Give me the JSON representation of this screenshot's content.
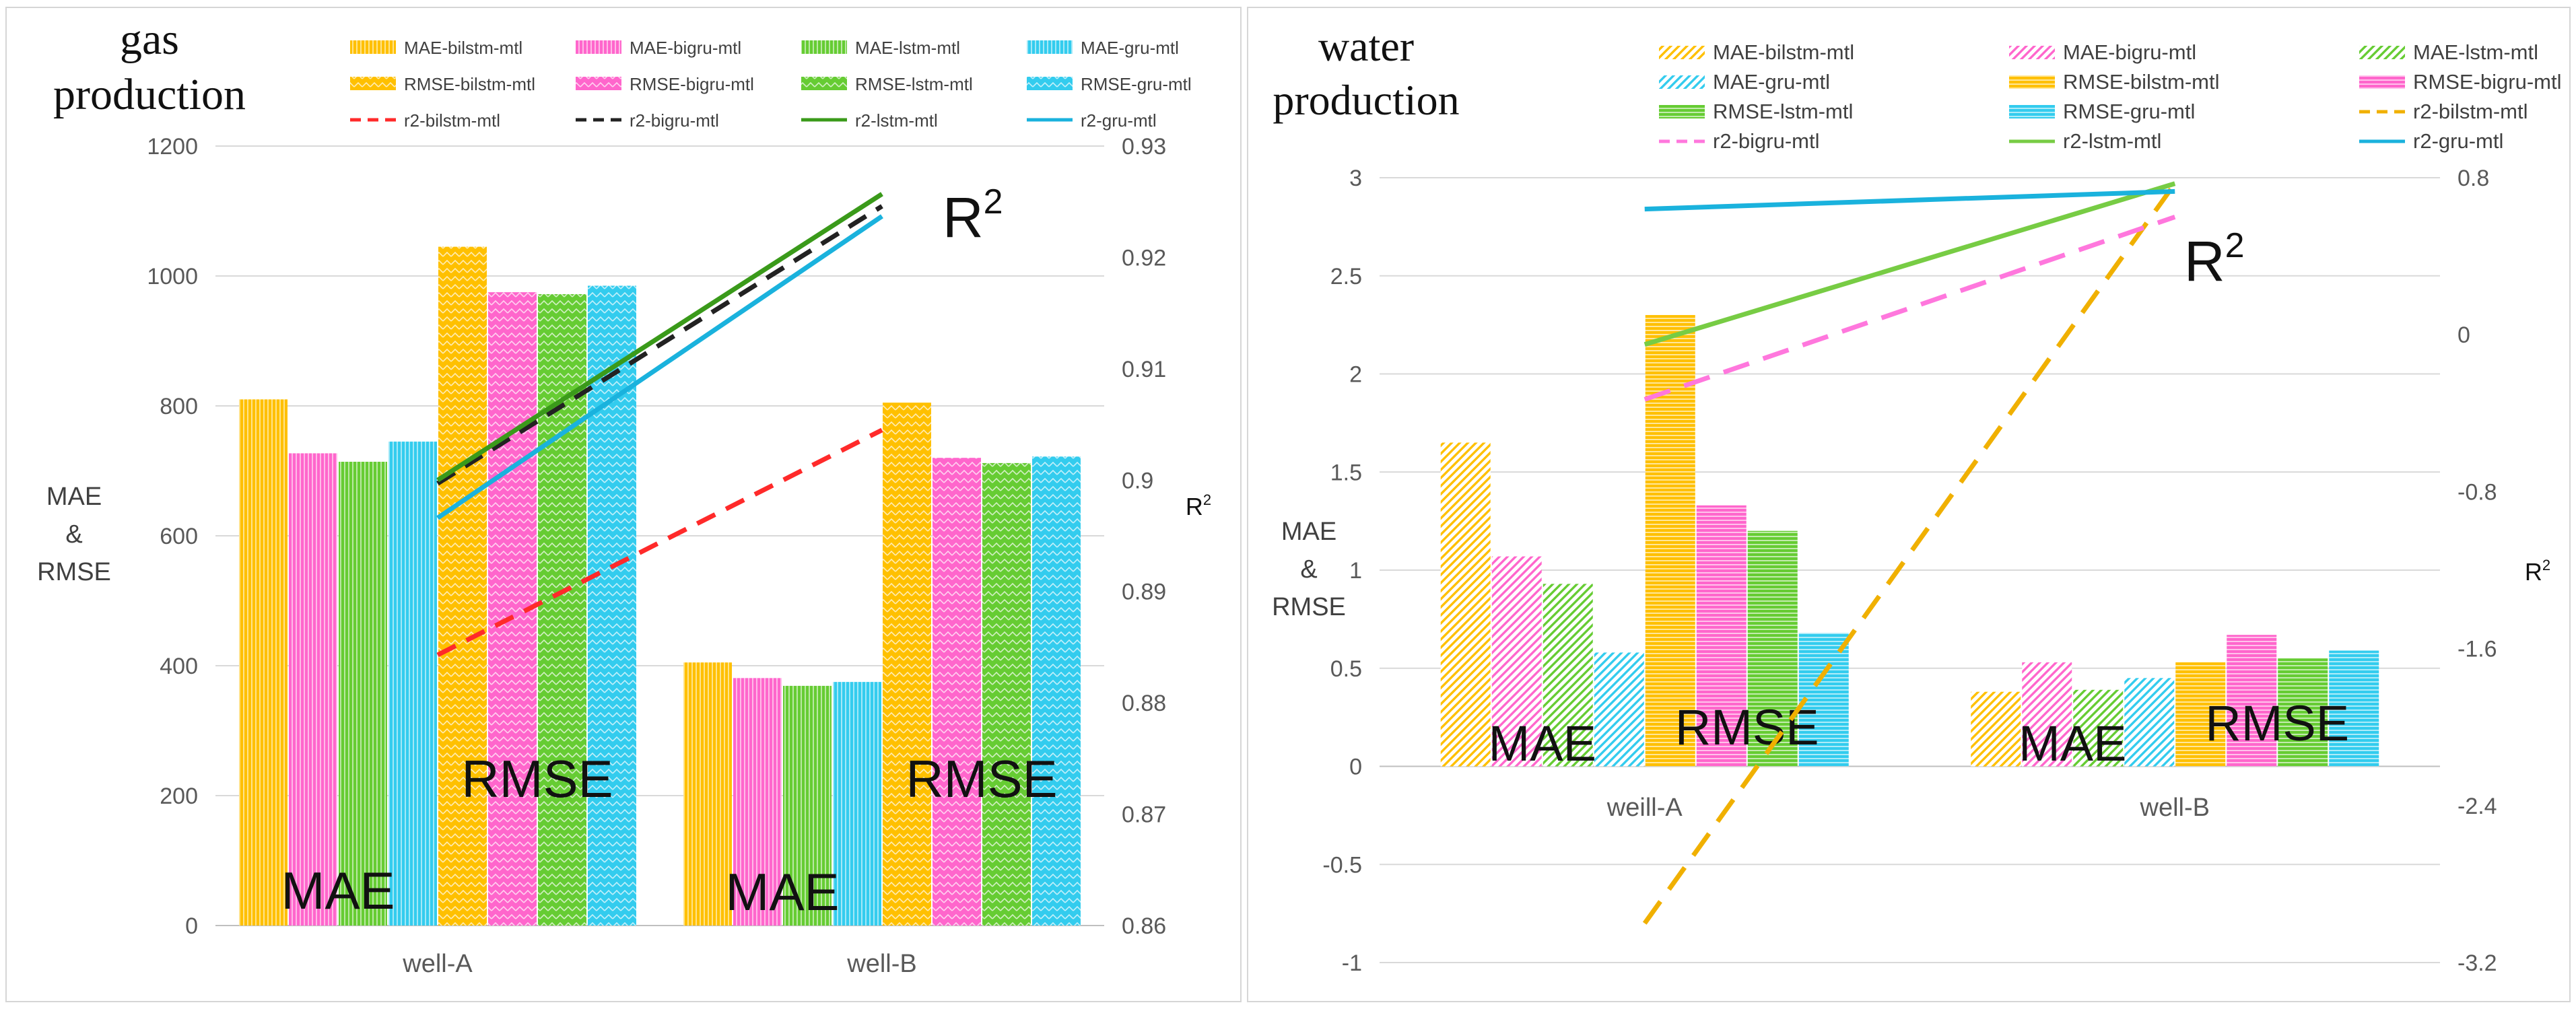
{
  "colors": {
    "bilstm": "#FFC000",
    "bigru": "#FF66CC",
    "lstm": "#66CC33",
    "gru": "#33CCEE",
    "r2_bilstm_gas": "#FF2A2A",
    "r2_bigru_gas": "#222222",
    "r2_lstm_gas": "#3A9A1A",
    "r2_gru_gas": "#1AB2DD",
    "r2_bilstm_water": "#F0B000",
    "r2_bigru_water": "#FF77DD",
    "r2_lstm_water": "#77CC44",
    "r2_gru_water": "#1AB2DD"
  },
  "chart_data": [
    {
      "type": "bar",
      "title": [
        "gas",
        "production"
      ],
      "categories": [
        "well-A",
        "well-B"
      ],
      "ylabel": [
        "MAE",
        "&",
        "RMSE"
      ],
      "y2label": "R2",
      "ylim": [
        0,
        1200
      ],
      "yticks": [
        0,
        200,
        400,
        600,
        800,
        1000,
        1200
      ],
      "y2lim": [
        0.86,
        0.93
      ],
      "y2ticks": [
        "0.86",
        "0.87",
        "0.88",
        "0.89",
        "0.9",
        "0.91",
        "0.92",
        "0.93"
      ],
      "series": [
        {
          "name": "MAE-bilstm-mtl",
          "group": "MAE",
          "model": "bilstm",
          "values": [
            810,
            405
          ]
        },
        {
          "name": "MAE-bigru-mtl",
          "group": "MAE",
          "model": "bigru",
          "values": [
            727,
            381
          ]
        },
        {
          "name": "MAE-lstm-mtl",
          "group": "MAE",
          "model": "lstm",
          "values": [
            714,
            369
          ]
        },
        {
          "name": "MAE-gru-mtl",
          "group": "MAE",
          "model": "gru",
          "values": [
            745,
            375
          ]
        },
        {
          "name": "RMSE-bilstm-mtl",
          "group": "RMSE",
          "model": "bilstm",
          "values": [
            1045,
            805
          ]
        },
        {
          "name": "RMSE-bigru-mtl",
          "group": "RMSE",
          "model": "bigru",
          "values": [
            975,
            720
          ]
        },
        {
          "name": "RMSE-lstm-mtl",
          "group": "RMSE",
          "model": "lstm",
          "values": [
            972,
            712
          ]
        },
        {
          "name": "RMSE-gru-mtl",
          "group": "RMSE",
          "model": "gru",
          "values": [
            985,
            722
          ]
        }
      ],
      "lines": [
        {
          "name": "r2-bilstm-mtl",
          "model": "bilstm",
          "style": "dashed",
          "values": [
            0.8843,
            0.9045
          ]
        },
        {
          "name": "r2-bigru-mtl",
          "model": "bigru",
          "style": "dashed",
          "values": [
            0.8997,
            0.9246
          ]
        },
        {
          "name": "r2-lstm-mtl",
          "model": "lstm",
          "style": "solid",
          "values": [
            0.9,
            0.9257
          ]
        },
        {
          "name": "r2-gru-mtl",
          "model": "gru",
          "style": "solid",
          "values": [
            0.8966,
            0.9237
          ]
        }
      ],
      "annotations": {
        "mae": "MAE",
        "rmse": "RMSE",
        "r2": "R2"
      },
      "legend_rows": [
        [
          "MAE-bilstm-mtl",
          "MAE-bigru-mtl",
          "MAE-lstm-mtl",
          "MAE-gru-mtl"
        ],
        [
          "RMSE-bilstm-mtl",
          "RMSE-bigru-mtl",
          "RMSE-lstm-mtl",
          "RMSE-gru-mtl"
        ],
        [
          "r2-bilstm-mtl",
          "r2-bigru-mtl",
          "r2-lstm-mtl",
          "r2-gru-mtl"
        ]
      ]
    },
    {
      "type": "bar",
      "title": [
        "water",
        "production"
      ],
      "categories": [
        "weill-A",
        "well-B"
      ],
      "ylabel": [
        "MAE",
        "&",
        "RMSE"
      ],
      "y2label": "R2",
      "ylim": [
        -1,
        3
      ],
      "yticks": [
        "-1",
        "-0.5",
        "0",
        "0.5",
        "1",
        "1.5",
        "2",
        "2.5",
        "3"
      ],
      "y2lim": [
        -3.2,
        0.8
      ],
      "y2ticks": [
        "-3.2",
        "-2.4",
        "-1.6",
        "-0.8",
        "0",
        "0.8"
      ],
      "series": [
        {
          "name": "MAE-bilstm-mtl",
          "group": "MAE",
          "model": "bilstm",
          "values": [
            1.65,
            0.38
          ]
        },
        {
          "name": "MAE-bigru-mtl",
          "group": "MAE",
          "model": "bigru",
          "values": [
            1.07,
            0.53
          ]
        },
        {
          "name": "MAE-lstm-mtl",
          "group": "MAE",
          "model": "lstm",
          "values": [
            0.93,
            0.39
          ]
        },
        {
          "name": "MAE-gru-mtl",
          "group": "MAE",
          "model": "gru",
          "values": [
            0.58,
            0.45
          ]
        },
        {
          "name": "RMSE-bilstm-mtl",
          "group": "RMSE",
          "model": "bilstm",
          "values": [
            2.3,
            0.53
          ]
        },
        {
          "name": "RMSE-bigru-mtl",
          "group": "RMSE",
          "model": "bigru",
          "values": [
            1.33,
            0.67
          ]
        },
        {
          "name": "RMSE-lstm-mtl",
          "group": "RMSE",
          "model": "lstm",
          "values": [
            1.2,
            0.55
          ]
        },
        {
          "name": "RMSE-gru-mtl",
          "group": "RMSE",
          "model": "gru",
          "values": [
            0.68,
            0.59
          ]
        }
      ],
      "lines": [
        {
          "name": "r2-bilstm-mtl",
          "model": "bilstm",
          "style": "dashed",
          "values": [
            -3.0,
            0.77
          ]
        },
        {
          "name": "r2-bigru-mtl",
          "model": "bigru",
          "style": "dashed",
          "values": [
            -0.33,
            0.6
          ]
        },
        {
          "name": "r2-lstm-mtl",
          "model": "lstm",
          "style": "solid",
          "values": [
            -0.05,
            0.77
          ]
        },
        {
          "name": "r2-gru-mtl",
          "model": "gru",
          "style": "solid",
          "values": [
            0.64,
            0.73
          ]
        }
      ],
      "annotations": {
        "mae": "MAE",
        "rmse": "RMSE",
        "r2": "R2"
      },
      "legend_rows": [
        [
          "MAE-bilstm-mtl",
          "MAE-bigru-mtl",
          "MAE-lstm-mtl"
        ],
        [
          "MAE-gru-mtl",
          "RMSE-bilstm-mtl",
          "RMSE-bigru-mtl"
        ],
        [
          "RMSE-lstm-mtl",
          "RMSE-gru-mtl",
          "r2-bilstm-mtl"
        ],
        [
          "r2-bigru-mtl",
          "r2-lstm-mtl",
          "r2-gru-mtl"
        ]
      ]
    }
  ]
}
